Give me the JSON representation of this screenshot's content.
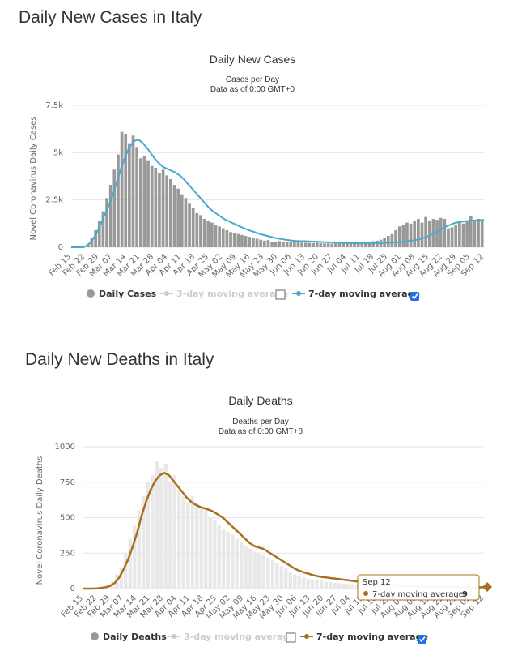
{
  "page": {
    "cases_heading": "Daily New Cases in Italy",
    "deaths_heading": "Daily New Deaths in Italy"
  },
  "colors": {
    "bar": "#999999",
    "bar_light": "#e8e8e8",
    "cases_line": "#4aa8c8",
    "deaths_line": "#a8701c",
    "grid": "#e6e6e6",
    "legend_muted": "#cccccc",
    "checkbox_checked": "#1a73e8"
  },
  "chart_data": [
    {
      "id": "cases",
      "type": "bar",
      "title": "Daily New Cases",
      "subtitle_lines": [
        "Cases per Day",
        "Data as of 0:00 GMT+0"
      ],
      "ylabel": "Novel Coronavirus Daily Cases",
      "ylim": [
        0,
        7500
      ],
      "y_ticks": [
        0,
        2500,
        5000,
        7500
      ],
      "y_tick_labels": [
        "0",
        "2.5k",
        "5k",
        "7.5k"
      ],
      "x_tick_labels": [
        "Feb 15",
        "Feb 22",
        "Feb 29",
        "Mar 07",
        "Mar 14",
        "Mar 21",
        "Mar 28",
        "Apr 04",
        "Apr 11",
        "Apr 18",
        "Apr 25",
        "May 02",
        "May 09",
        "May 16",
        "May 23",
        "May 30",
        "Jun 06",
        "Jun 13",
        "Jun 20",
        "Jun 27",
        "Jul 04",
        "Jul 11",
        "Jul 18",
        "Jul 25",
        "Aug 01",
        "Aug 08",
        "Aug 15",
        "Aug 22",
        "Aug 29",
        "Sep 05",
        "Sep 12"
      ],
      "bar_series_name": "Daily Cases",
      "line_series_name": "7-day moving average",
      "muted_series_name": "3-day moving average",
      "line_values": [
        0,
        0,
        0,
        5,
        120,
        350,
        700,
        1200,
        1700,
        2200,
        2800,
        3500,
        4200,
        4800,
        5300,
        5600,
        5700,
        5550,
        5300,
        5000,
        4700,
        4450,
        4250,
        4150,
        4050,
        3950,
        3800,
        3600,
        3350,
        3100,
        2850,
        2600,
        2350,
        2100,
        1900,
        1750,
        1600,
        1450,
        1350,
        1250,
        1150,
        1050,
        950,
        870,
        800,
        720,
        660,
        600,
        540,
        490,
        450,
        410,
        380,
        350,
        330,
        320,
        320,
        310,
        300,
        290,
        280,
        270,
        260,
        250,
        240,
        230,
        225,
        220,
        215,
        210,
        210,
        205,
        210,
        215,
        220,
        230,
        240,
        250,
        260,
        280,
        300,
        330,
        360,
        400,
        460,
        530,
        620,
        730,
        850,
        980,
        1100,
        1200,
        1280,
        1330,
        1360,
        1390,
        1410,
        1420,
        1440,
        1450
      ],
      "bar_values": [
        0,
        0,
        0,
        30,
        200,
        500,
        900,
        1400,
        1900,
        2600,
        3300,
        4100,
        4900,
        6100,
        6000,
        5500,
        5900,
        5300,
        4700,
        4800,
        4600,
        4300,
        4200,
        3900,
        4100,
        3800,
        3600,
        3300,
        3100,
        2800,
        2600,
        2300,
        2100,
        1800,
        1700,
        1500,
        1400,
        1300,
        1200,
        1100,
        1000,
        900,
        800,
        750,
        700,
        650,
        600,
        550,
        500,
        450,
        400,
        350,
        380,
        300,
        280,
        330,
        300,
        290,
        280,
        260,
        270,
        250,
        240,
        230,
        220,
        240,
        210,
        200,
        210,
        190,
        220,
        200,
        230,
        250,
        200,
        260,
        240,
        270,
        280,
        300,
        320,
        350,
        400,
        480,
        600,
        700,
        900,
        1100,
        1200,
        1300,
        1250,
        1400,
        1500,
        1300,
        1600,
        1400,
        1500,
        1450,
        1550,
        1500
      ],
      "bar_values_extra": [
        1000,
        1050,
        1200,
        1300,
        1250,
        1350,
        1650,
        1400,
        1500,
        1450
      ]
    },
    {
      "id": "deaths",
      "type": "bar",
      "title": "Daily Deaths",
      "subtitle_lines": [
        "Deaths per Day",
        "Data as of 0:00 GMT+8"
      ],
      "ylabel": "Novel Coronavirus Daily Deaths",
      "ylim": [
        0,
        1000
      ],
      "y_ticks": [
        0,
        250,
        500,
        750,
        1000
      ],
      "y_tick_labels": [
        "0",
        "250",
        "500",
        "750",
        "1000"
      ],
      "x_tick_labels": [
        "Feb 15",
        "Feb 22",
        "Feb 29",
        "Mar 07",
        "Mar 14",
        "Mar 21",
        "Mar 28",
        "Apr 04",
        "Apr 11",
        "Apr 18",
        "Apr 25",
        "May 02",
        "May 09",
        "May 16",
        "May 23",
        "May 30",
        "Jun 06",
        "Jun 13",
        "Jun 20",
        "Jun 27",
        "Jul 04",
        "Jul 11",
        "Jul 18",
        "Jul 25",
        "Aug 01",
        "Aug 08",
        "Aug 15",
        "Aug 22",
        "Aug 29",
        "Sep 05",
        "Sep 12"
      ],
      "bar_series_name": "Daily Deaths",
      "line_series_name": "7-day moving average",
      "muted_series_name": "3-day moving average",
      "line_values": [
        0,
        0,
        0,
        2,
        5,
        10,
        20,
        40,
        80,
        140,
        210,
        300,
        400,
        520,
        620,
        700,
        760,
        800,
        815,
        800,
        760,
        720,
        680,
        640,
        610,
        590,
        575,
        565,
        555,
        540,
        520,
        500,
        470,
        440,
        410,
        380,
        350,
        320,
        300,
        290,
        280,
        260,
        240,
        220,
        200,
        180,
        160,
        140,
        125,
        115,
        105,
        95,
        88,
        82,
        78,
        74,
        70,
        66,
        62,
        58,
        54,
        50,
        46,
        42,
        38,
        34,
        30,
        28,
        26,
        24,
        22,
        20,
        19,
        18,
        17,
        16,
        15,
        14,
        13,
        12,
        12,
        11,
        11,
        10,
        10,
        10,
        9,
        9,
        9,
        9
      ],
      "bar_values": [
        0,
        0,
        0,
        5,
        10,
        20,
        50,
        100,
        150,
        250,
        350,
        450,
        550,
        650,
        750,
        800,
        900,
        850,
        880,
        750,
        800,
        700,
        650,
        600,
        650,
        600,
        580,
        560,
        500,
        480,
        450,
        420,
        400,
        380,
        350,
        330,
        300,
        280,
        260,
        250,
        240,
        220,
        200,
        180,
        160,
        140,
        120,
        100,
        90,
        80,
        70,
        65,
        60,
        55,
        50,
        45,
        40,
        38,
        35,
        32,
        30,
        28,
        25,
        22,
        20,
        18,
        16,
        15,
        14,
        13,
        12,
        11,
        10,
        10,
        9,
        9,
        8,
        8,
        8,
        7,
        7,
        7,
        6,
        6,
        6,
        6,
        6,
        5,
        5,
        5
      ],
      "tooltip": {
        "date": "Sep 12",
        "series": "7-day moving average",
        "value": "9"
      }
    }
  ]
}
